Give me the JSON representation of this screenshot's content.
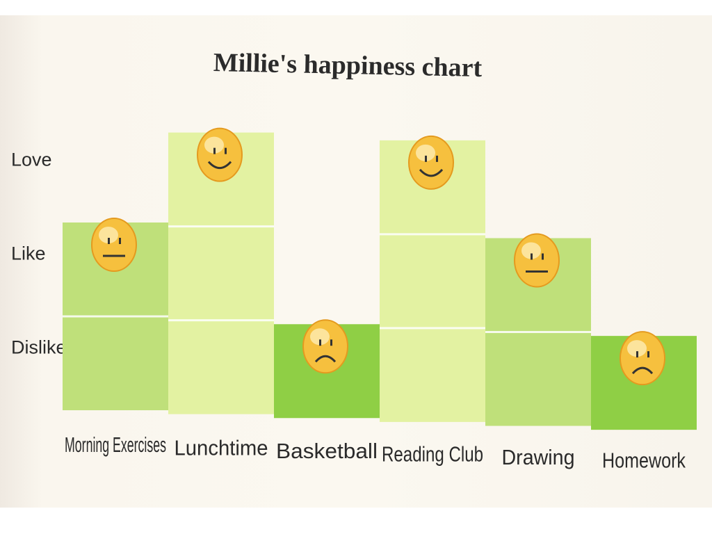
{
  "chart_data": {
    "type": "bar",
    "title": "Millie's happiness chart",
    "categories": [
      "Morning Exercises",
      "Lunchtime",
      "Basketball",
      "Reading Club",
      "Drawing",
      "Homework"
    ],
    "values": [
      2,
      3,
      1,
      3,
      2,
      1
    ],
    "y_levels": [
      "Dislike",
      "Like",
      "Love"
    ],
    "faces": [
      "neutral",
      "smile",
      "frown",
      "smile",
      "neutral",
      "frown"
    ],
    "bar_colors": [
      "#bfe07a",
      "#e3f2a2",
      "#8fcf45",
      "#e3f2a2",
      "#bfe07a",
      "#8fcf45"
    ],
    "face_color": "#f6c03e",
    "ylim": [
      0,
      3
    ],
    "grid": false
  }
}
